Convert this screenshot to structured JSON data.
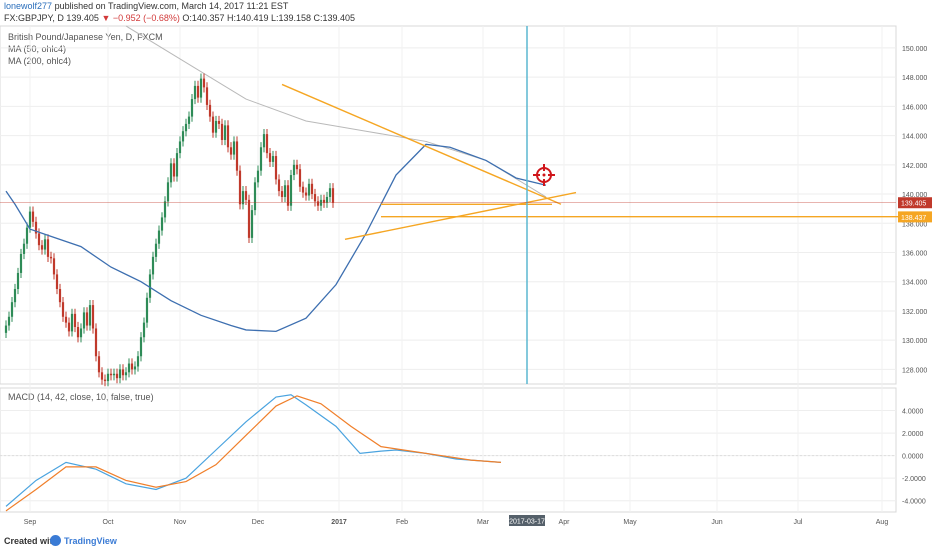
{
  "header": {
    "author": "lonewolf277",
    "published": "published on TradingView.com, March 14, 2017 11:21 EST",
    "symbol": "FX:GBPJPY, D",
    "last": "139.405",
    "change": "▼ −0.952 (−0.68%)",
    "ohlc": "O:140.357 H:140.419 L:139.158 C:139.405"
  },
  "legend": {
    "title": "British Pound/Japanese Yen, D, FXCM",
    "ma50": "MA (50, ohlc4)",
    "ma200": "MA (200, ohlc4)",
    "macd": "MACD (14, 42, close, 10, false, true)"
  },
  "footer": {
    "created": "Created with",
    "brand": "TradingView"
  },
  "colors": {
    "up": "#2e8b57",
    "down": "#c0392b",
    "ma50": "#3d6fb0",
    "ma200": "#b9b9b9",
    "trend": "#f5a623",
    "cursor": "#5bb7d0",
    "target": "#d0161b",
    "macd": "#4aa3df",
    "signal": "#f07f2a"
  },
  "chart_data": [
    {
      "type": "line",
      "title": "British Pound/Japanese Yen, D, FXCM",
      "ylim": [
        127,
        151.5
      ],
      "y_ticks": [
        "128.000",
        "130.000",
        "132.000",
        "134.000",
        "136.000",
        "138.000",
        "140.000",
        "142.000",
        "144.000",
        "146.000",
        "148.000",
        "150.000"
      ],
      "x_ticks": [
        "Sep",
        "Oct",
        "Nov",
        "Dec",
        "2017",
        "Feb",
        "Mar",
        "Apr",
        "May",
        "Jun",
        "Jul",
        "Aug"
      ],
      "price_labels": [
        {
          "value": 139.405,
          "text": "139.405",
          "color": "#c0392b"
        },
        {
          "value": 138.437,
          "text": "138.437",
          "color": "#f5a623"
        }
      ],
      "cursor_date": "2017-03-17",
      "candles_close": [
        131,
        131.6,
        132.6,
        133.5,
        134.6,
        135.9,
        136.6,
        137.7,
        138.8,
        138.1,
        137.3,
        136.5,
        136.2,
        136.9,
        135.7,
        135.6,
        134.5,
        133.5,
        132.6,
        131.6,
        131.2,
        130.6,
        131.8,
        130.9,
        130.2,
        130.8,
        131.9,
        131.0,
        132.4,
        130.8,
        128.9,
        127.8,
        127.3,
        127.2,
        127.7,
        127.6,
        127.7,
        127.4,
        128.0,
        127.6,
        127.8,
        128.4,
        128.0,
        128.2,
        128.9,
        130.2,
        131.2,
        132.9,
        134.5,
        135.7,
        136.6,
        137.5,
        138.4,
        139.5,
        140.8,
        142.1,
        141.2,
        142.8,
        143.6,
        144.3,
        144.8,
        145.3,
        146.5,
        147.4,
        146.6,
        147.9,
        147.3,
        146.1,
        145.3,
        144.2,
        145.0,
        144.8,
        143.7,
        144.7,
        143.2,
        142.7,
        143.6,
        141.6,
        139.3,
        140.2,
        139.6,
        137.0,
        138.9,
        140.8,
        141.6,
        143.2,
        144.1,
        142.8,
        142.2,
        142.6,
        141.0,
        140.2,
        139.8,
        140.6,
        139.2,
        141.3,
        142.0,
        141.7,
        140.5,
        140.1,
        139.9,
        140.7,
        140.0,
        139.5,
        139.2,
        139.6,
        139.4,
        139.8,
        140.4,
        139.4
      ],
      "ma50": [
        [
          0,
          140.2
        ],
        [
          3,
          139.3
        ],
        [
          8,
          137.6
        ],
        [
          15,
          137.1
        ],
        [
          25,
          136.4
        ],
        [
          35,
          135.0
        ],
        [
          45,
          134.0
        ],
        [
          55,
          132.7
        ],
        [
          65,
          131.7
        ],
        [
          75,
          131.0
        ],
        [
          80,
          130.7
        ],
        [
          90,
          130.6
        ],
        [
          100,
          131.5
        ],
        [
          110,
          133.8
        ],
        [
          120,
          137.3
        ],
        [
          130,
          141.3
        ],
        [
          140,
          143.4
        ],
        [
          148,
          143.2
        ],
        [
          160,
          142.3
        ],
        [
          170,
          141.1
        ],
        [
          180,
          140.6
        ]
      ],
      "ma200": [
        [
          40,
          151.5
        ],
        [
          60,
          149.0
        ],
        [
          80,
          146.5
        ],
        [
          100,
          145.0
        ],
        [
          120,
          144.3
        ],
        [
          140,
          143.6
        ],
        [
          160,
          142.3
        ],
        [
          180,
          139.8
        ]
      ],
      "trendlines": [
        {
          "from": [
            92,
            147.5
          ],
          "to": [
            185,
            139.3
          ]
        },
        {
          "from": [
            113,
            136.9
          ],
          "to": [
            190,
            140.1
          ]
        },
        {
          "from": [
            125,
            139.3
          ],
          "to": [
            182,
            139.3
          ]
        },
        {
          "from": [
            125,
            138.45
          ],
          "to": [
            300,
            138.45
          ]
        }
      ]
    },
    {
      "type": "line",
      "title": "MACD (14, 42, close, 10, false, true)",
      "ylim": [
        -5,
        6
      ],
      "y_ticks": [
        "4.0000",
        "2.0000",
        "0.0000",
        "-2.0000",
        "-4.0000"
      ],
      "series": [
        {
          "name": "",
          "points": [
            [
              0,
              -4.5
            ],
            [
              10,
              -2.2
            ],
            [
              20,
              -0.6
            ],
            [
              30,
              -1.2
            ],
            [
              40,
              -2.5
            ],
            [
              50,
              -3.0
            ],
            [
              60,
              -2.0
            ],
            [
              70,
              0.5
            ],
            [
              80,
              3.0
            ],
            [
              90,
              5.2
            ],
            [
              95,
              5.4
            ],
            [
              100,
              4.5
            ],
            [
              110,
              2.6
            ],
            [
              118,
              0.2
            ],
            [
              125,
              0.4
            ],
            [
              130,
              0.5
            ],
            [
              140,
              0.2
            ],
            [
              150,
              -0.3
            ],
            [
              165,
              -0.6
            ]
          ]
        },
        {
          "name": "",
          "points": [
            [
              0,
              -4.9
            ],
            [
              10,
              -3.0
            ],
            [
              20,
              -1.0
            ],
            [
              30,
              -1.0
            ],
            [
              40,
              -2.2
            ],
            [
              50,
              -2.8
            ],
            [
              60,
              -2.3
            ],
            [
              70,
              -0.8
            ],
            [
              80,
              1.8
            ],
            [
              90,
              4.4
            ],
            [
              97,
              5.3
            ],
            [
              105,
              4.6
            ],
            [
              115,
              2.6
            ],
            [
              125,
              0.8
            ],
            [
              135,
              0.4
            ],
            [
              145,
              0.0
            ],
            [
              155,
              -0.4
            ],
            [
              165,
              -0.6
            ]
          ]
        }
      ]
    }
  ]
}
